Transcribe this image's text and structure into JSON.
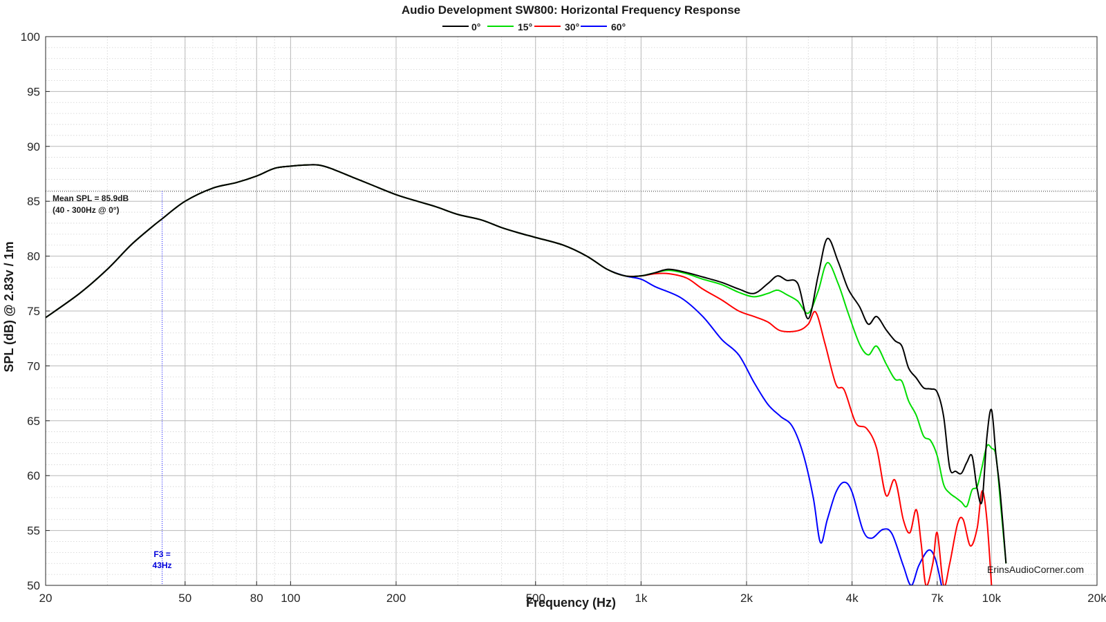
{
  "chart_data": {
    "type": "line",
    "title": "Audio Development SW800: Horizontal Frequency Response",
    "xlabel": "Frequency (Hz)",
    "ylabel": "SPL (dB) @ 2.83v / 1m",
    "xscale": "log",
    "xlim": [
      20,
      20000
    ],
    "ylim": [
      50,
      100
    ],
    "grid": true,
    "legend_position": "top-center",
    "xticks": [
      {
        "value": 20,
        "label": "20"
      },
      {
        "value": 50,
        "label": "50"
      },
      {
        "value": 80,
        "label": "80"
      },
      {
        "value": 100,
        "label": "100"
      },
      {
        "value": 200,
        "label": "200"
      },
      {
        "value": 500,
        "label": "500"
      },
      {
        "value": 1000,
        "label": "1k"
      },
      {
        "value": 2000,
        "label": "2k"
      },
      {
        "value": 4000,
        "label": "4k"
      },
      {
        "value": 7000,
        "label": "7k"
      },
      {
        "value": 10000,
        "label": "10k"
      },
      {
        "value": 20000,
        "label": "20k"
      }
    ],
    "yticks": [
      {
        "value": 50,
        "label": "50"
      },
      {
        "value": 55,
        "label": "55"
      },
      {
        "value": 60,
        "label": "60"
      },
      {
        "value": 65,
        "label": "65"
      },
      {
        "value": 70,
        "label": "70"
      },
      {
        "value": 75,
        "label": "75"
      },
      {
        "value": 80,
        "label": "80"
      },
      {
        "value": 85,
        "label": "85"
      },
      {
        "value": 90,
        "label": "90"
      },
      {
        "value": 95,
        "label": "95"
      },
      {
        "value": 100,
        "label": "100"
      }
    ],
    "annotations": {
      "mean_spl": {
        "line1": "Mean SPL = 85.9dB",
        "line2": "(40 - 300Hz @ 0°)",
        "value": 85.9,
        "range_start": 20,
        "range_end": 20000
      },
      "f3": {
        "line1": "F3 =",
        "line2": "43Hz",
        "value": 43
      },
      "watermark": "ErinsAudioCorner.com"
    },
    "series": [
      {
        "name": "0°",
        "color": "#000000",
        "points": [
          [
            20,
            74.4
          ],
          [
            25,
            76.6
          ],
          [
            30,
            78.8
          ],
          [
            35,
            81
          ],
          [
            40,
            82.6
          ],
          [
            43,
            83.4
          ],
          [
            50,
            85
          ],
          [
            60,
            86.2
          ],
          [
            70,
            86.7
          ],
          [
            80,
            87.3
          ],
          [
            90,
            88
          ],
          [
            100,
            88.2
          ],
          [
            110,
            88.3
          ],
          [
            120,
            88.3
          ],
          [
            130,
            88
          ],
          [
            150,
            87.2
          ],
          [
            170,
            86.5
          ],
          [
            200,
            85.6
          ],
          [
            230,
            85
          ],
          [
            260,
            84.5
          ],
          [
            300,
            83.8
          ],
          [
            350,
            83.3
          ],
          [
            400,
            82.6
          ],
          [
            450,
            82.1
          ],
          [
            500,
            81.7
          ],
          [
            600,
            81
          ],
          [
            700,
            80
          ],
          [
            800,
            78.8
          ],
          [
            900,
            78.2
          ],
          [
            1000,
            78.2
          ],
          [
            1100,
            78.5
          ],
          [
            1200,
            78.8
          ],
          [
            1350,
            78.5
          ],
          [
            1500,
            78.1
          ],
          [
            1700,
            77.6
          ],
          [
            1900,
            77
          ],
          [
            2100,
            76.6
          ],
          [
            2300,
            77.5
          ],
          [
            2450,
            78.2
          ],
          [
            2600,
            77.8
          ],
          [
            2800,
            77.5
          ],
          [
            3000,
            74.3
          ],
          [
            3200,
            78.2
          ],
          [
            3400,
            81.6
          ],
          [
            3650,
            79.5
          ],
          [
            3900,
            77
          ],
          [
            4200,
            75.4
          ],
          [
            4450,
            73.8
          ],
          [
            4700,
            74.5
          ],
          [
            5000,
            73.3
          ],
          [
            5300,
            72.3
          ],
          [
            5550,
            71.8
          ],
          [
            5800,
            69.8
          ],
          [
            6100,
            68.9
          ],
          [
            6400,
            68
          ],
          [
            6700,
            67.9
          ],
          [
            7000,
            67.6
          ],
          [
            7300,
            65.4
          ],
          [
            7600,
            60.7
          ],
          [
            7900,
            60.4
          ],
          [
            8200,
            60.2
          ],
          [
            8500,
            61.2
          ],
          [
            8800,
            61.8
          ],
          [
            9100,
            58.8
          ],
          [
            9400,
            57.7
          ],
          [
            9700,
            63.5
          ],
          [
            10000,
            66
          ],
          [
            10300,
            61.8
          ],
          [
            10600,
            58.3
          ],
          [
            11000,
            52
          ]
        ]
      },
      {
        "name": "15°",
        "color": "#00dd00",
        "points": [
          [
            20,
            74.4
          ],
          [
            25,
            76.6
          ],
          [
            30,
            78.8
          ],
          [
            35,
            81
          ],
          [
            40,
            82.6
          ],
          [
            43,
            83.4
          ],
          [
            50,
            85
          ],
          [
            60,
            86.2
          ],
          [
            70,
            86.7
          ],
          [
            80,
            87.3
          ],
          [
            90,
            88
          ],
          [
            100,
            88.2
          ],
          [
            110,
            88.3
          ],
          [
            120,
            88.3
          ],
          [
            130,
            88
          ],
          [
            150,
            87.2
          ],
          [
            170,
            86.5
          ],
          [
            200,
            85.6
          ],
          [
            230,
            85
          ],
          [
            260,
            84.5
          ],
          [
            300,
            83.8
          ],
          [
            350,
            83.3
          ],
          [
            400,
            82.6
          ],
          [
            450,
            82.1
          ],
          [
            500,
            81.7
          ],
          [
            600,
            81
          ],
          [
            700,
            80
          ],
          [
            800,
            78.8
          ],
          [
            900,
            78.2
          ],
          [
            1000,
            78.2
          ],
          [
            1100,
            78.5
          ],
          [
            1200,
            78.7
          ],
          [
            1350,
            78.4
          ],
          [
            1500,
            77.9
          ],
          [
            1700,
            77.4
          ],
          [
            1900,
            76.7
          ],
          [
            2100,
            76.3
          ],
          [
            2300,
            76.6
          ],
          [
            2450,
            76.9
          ],
          [
            2600,
            76.5
          ],
          [
            2800,
            75.9
          ],
          [
            3000,
            74.8
          ],
          [
            3200,
            76.8
          ],
          [
            3400,
            79.4
          ],
          [
            3650,
            77.5
          ],
          [
            3900,
            74.8
          ],
          [
            4200,
            72
          ],
          [
            4450,
            71
          ],
          [
            4700,
            71.8
          ],
          [
            5000,
            70.2
          ],
          [
            5300,
            68.8
          ],
          [
            5550,
            68.6
          ],
          [
            5800,
            66.8
          ],
          [
            6100,
            65.5
          ],
          [
            6400,
            63.6
          ],
          [
            6700,
            63.2
          ],
          [
            7000,
            61.8
          ],
          [
            7300,
            59.2
          ],
          [
            7600,
            58.4
          ],
          [
            7900,
            58
          ],
          [
            8200,
            57.6
          ],
          [
            8500,
            57.2
          ],
          [
            8800,
            58.7
          ],
          [
            9100,
            59
          ],
          [
            9400,
            60.8
          ],
          [
            9700,
            62.7
          ],
          [
            10000,
            62.5
          ],
          [
            10300,
            61.8
          ],
          [
            10600,
            57.6
          ],
          [
            11000,
            52
          ]
        ]
      },
      {
        "name": "30°",
        "color": "#ff0000",
        "points": [
          [
            20,
            74.4
          ],
          [
            25,
            76.6
          ],
          [
            30,
            78.8
          ],
          [
            35,
            81
          ],
          [
            40,
            82.6
          ],
          [
            43,
            83.4
          ],
          [
            50,
            85
          ],
          [
            60,
            86.2
          ],
          [
            70,
            86.7
          ],
          [
            80,
            87.3
          ],
          [
            90,
            88
          ],
          [
            100,
            88.2
          ],
          [
            110,
            88.3
          ],
          [
            120,
            88.3
          ],
          [
            130,
            88
          ],
          [
            150,
            87.2
          ],
          [
            170,
            86.5
          ],
          [
            200,
            85.6
          ],
          [
            230,
            85
          ],
          [
            260,
            84.5
          ],
          [
            300,
            83.8
          ],
          [
            350,
            83.3
          ],
          [
            400,
            82.6
          ],
          [
            450,
            82.1
          ],
          [
            500,
            81.7
          ],
          [
            600,
            81
          ],
          [
            700,
            80
          ],
          [
            800,
            78.8
          ],
          [
            900,
            78.2
          ],
          [
            1000,
            78.2
          ],
          [
            1100,
            78.4
          ],
          [
            1200,
            78.4
          ],
          [
            1350,
            78
          ],
          [
            1500,
            77
          ],
          [
            1700,
            76
          ],
          [
            1900,
            75
          ],
          [
            2100,
            74.5
          ],
          [
            2300,
            74
          ],
          [
            2500,
            73.2
          ],
          [
            2800,
            73.2
          ],
          [
            3000,
            73.8
          ],
          [
            3150,
            74.9
          ],
          [
            3350,
            72
          ],
          [
            3600,
            68.3
          ],
          [
            3800,
            67.8
          ],
          [
            4100,
            64.8
          ],
          [
            4400,
            64.3
          ],
          [
            4700,
            62.5
          ],
          [
            5000,
            58.2
          ],
          [
            5300,
            59.6
          ],
          [
            5600,
            56
          ],
          [
            5850,
            54.8
          ],
          [
            6100,
            56.9
          ],
          [
            6300,
            53.8
          ],
          [
            6500,
            50
          ],
          [
            6800,
            52
          ],
          [
            7000,
            54.8
          ],
          [
            7300,
            50
          ],
          [
            7600,
            52
          ],
          [
            8000,
            55.6
          ],
          [
            8300,
            56
          ],
          [
            8700,
            53.6
          ],
          [
            9100,
            55.2
          ],
          [
            9400,
            58.6
          ],
          [
            9700,
            56
          ],
          [
            10000,
            50
          ]
        ]
      },
      {
        "name": "60°",
        "color": "#0000ff",
        "points": [
          [
            20,
            74.4
          ],
          [
            25,
            76.6
          ],
          [
            30,
            78.8
          ],
          [
            35,
            81
          ],
          [
            40,
            82.6
          ],
          [
            43,
            83.4
          ],
          [
            50,
            85
          ],
          [
            60,
            86.2
          ],
          [
            70,
            86.7
          ],
          [
            80,
            87.3
          ],
          [
            90,
            88
          ],
          [
            100,
            88.2
          ],
          [
            110,
            88.3
          ],
          [
            120,
            88.3
          ],
          [
            130,
            88
          ],
          [
            150,
            87.2
          ],
          [
            170,
            86.5
          ],
          [
            200,
            85.6
          ],
          [
            230,
            85
          ],
          [
            260,
            84.5
          ],
          [
            300,
            83.8
          ],
          [
            350,
            83.3
          ],
          [
            400,
            82.6
          ],
          [
            450,
            82.1
          ],
          [
            500,
            81.7
          ],
          [
            600,
            81
          ],
          [
            700,
            80
          ],
          [
            800,
            78.8
          ],
          [
            900,
            78.2
          ],
          [
            1000,
            77.9
          ],
          [
            1100,
            77.2
          ],
          [
            1300,
            76.2
          ],
          [
            1500,
            74.5
          ],
          [
            1700,
            72.4
          ],
          [
            1900,
            71
          ],
          [
            2100,
            68.5
          ],
          [
            2300,
            66.5
          ],
          [
            2500,
            65.4
          ],
          [
            2700,
            64.5
          ],
          [
            2900,
            62
          ],
          [
            3100,
            58
          ],
          [
            3250,
            53.9
          ],
          [
            3400,
            56
          ],
          [
            3600,
            58.5
          ],
          [
            3800,
            59.4
          ],
          [
            4000,
            58.5
          ],
          [
            4300,
            55
          ],
          [
            4550,
            54.3
          ],
          [
            4900,
            55.1
          ],
          [
            5200,
            54.7
          ],
          [
            5600,
            51.8
          ],
          [
            5900,
            50
          ],
          [
            6200,
            51.8
          ],
          [
            6600,
            53.2
          ],
          [
            6900,
            52.5
          ],
          [
            7200,
            50
          ]
        ]
      }
    ]
  }
}
